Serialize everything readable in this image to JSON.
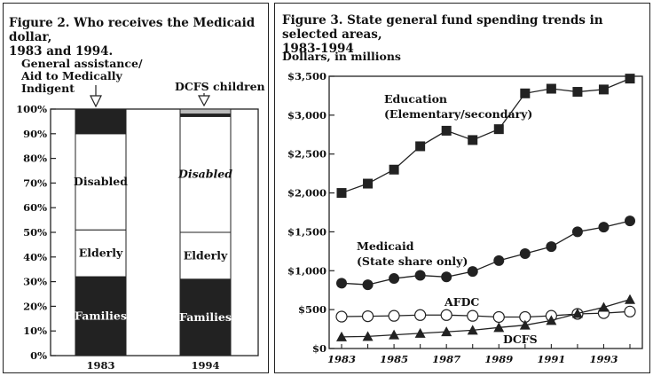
{
  "chart_data": [
    {
      "type": "bar",
      "title": "Figure 2. Who receives  the Medicaid dollar,\n1983 and 1994.",
      "categories": [
        "1983",
        "1994"
      ],
      "ylim": [
        0,
        100
      ],
      "yticks": [
        "0%",
        "10%",
        "20%",
        "30%",
        "40%",
        "50%",
        "60%",
        "70%",
        "80%",
        "90%",
        "100%"
      ],
      "series": [
        {
          "name": "Families",
          "values": [
            32,
            31
          ],
          "color": "#222222"
        },
        {
          "name": "Elderly",
          "values": [
            19,
            19
          ],
          "color": "#ffffff"
        },
        {
          "name": "Disabled",
          "values": [
            39,
            47
          ],
          "color": "#ffffff"
        },
        {
          "name": "General assistance/ Aid to Medically Indigent",
          "values": [
            10,
            1
          ],
          "color": "#222222"
        },
        {
          "name": "DCFS children",
          "values": [
            0,
            2
          ],
          "color": "#bbbbbb"
        }
      ],
      "segment_labels": {
        "families": "Families",
        "elderly": "Elderly",
        "disabled": "Disabled"
      },
      "annotations": {
        "general_assistance": "General assistance/\nAid to Medically\nIndigent",
        "dcfs": "DCFS children"
      }
    },
    {
      "type": "line",
      "title": "Figure 3. State general fund spending trends in selected areas,\n1983-1994",
      "ylabel": "Dollars, in millions",
      "x": [
        1983,
        1984,
        1985,
        1986,
        1987,
        1988,
        1989,
        1990,
        1991,
        1992,
        1993,
        1994
      ],
      "xticks": [
        "1983",
        "1985",
        "1987",
        "1989",
        "1991",
        "1993"
      ],
      "ylim": [
        0,
        3500
      ],
      "yticks": [
        "$0",
        "$500",
        "$1,000",
        "$1,500",
        "$2,000",
        "$2,500",
        "$3,000",
        "$3,500"
      ],
      "series": [
        {
          "name": "Education (Elementary/secondary)",
          "marker": "square",
          "values": [
            2000,
            2120,
            2300,
            2600,
            2800,
            2680,
            2820,
            3280,
            3340,
            3300,
            3330,
            3470
          ]
        },
        {
          "name": "Medicaid (State share only)",
          "marker": "filled-circle",
          "values": [
            840,
            820,
            900,
            940,
            920,
            990,
            1130,
            1220,
            1310,
            1500,
            1560,
            1640
          ]
        },
        {
          "name": "AFDC",
          "marker": "open-circle",
          "values": [
            410,
            415,
            420,
            430,
            430,
            420,
            405,
            405,
            420,
            445,
            455,
            475
          ]
        },
        {
          "name": "DCFS",
          "marker": "triangle",
          "values": [
            150,
            155,
            175,
            195,
            215,
            235,
            270,
            300,
            360,
            450,
            530,
            630
          ]
        }
      ],
      "labels": {
        "education": "Education\n(Elementary/secondary)",
        "medicaid": "Medicaid\n(State share only)",
        "afdc": "AFDC",
        "dcfs": "DCFS"
      }
    }
  ]
}
